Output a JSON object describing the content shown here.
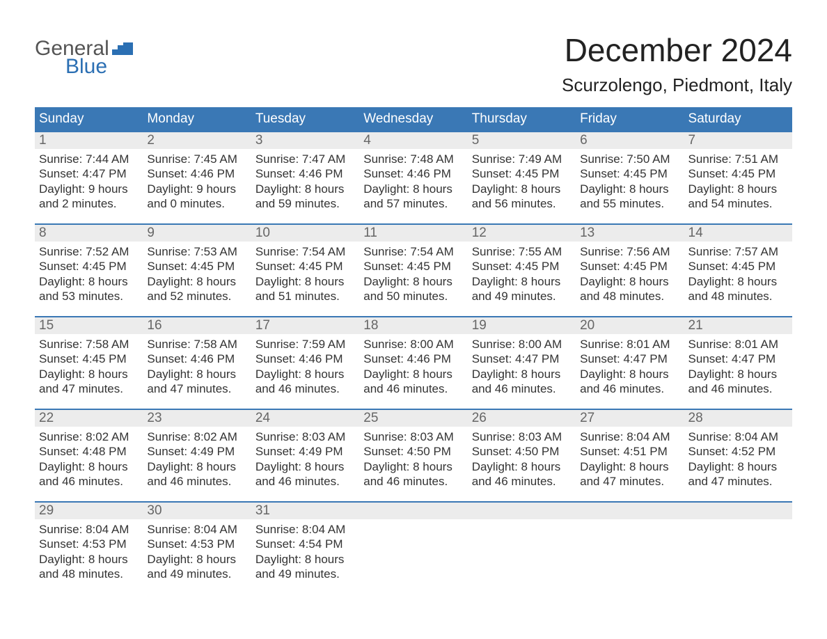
{
  "logo": {
    "word1": "General",
    "word2": "Blue"
  },
  "title": "December 2024",
  "subtitle": "Scurzolengo, Piedmont, Italy",
  "colors": {
    "header_bg": "#3a78b5",
    "header_text": "#ffffff",
    "row_divider": "#3a78b5",
    "daynum_bg": "#ececec",
    "daynum_text": "#666666",
    "body_text": "#333333",
    "logo_gray": "#555555",
    "logo_blue": "#2b6fb3",
    "page_bg": "#ffffff"
  },
  "fontsize": {
    "title": 46,
    "subtitle": 26,
    "weekday": 19,
    "daynum": 19,
    "cell": 17,
    "logo": 30
  },
  "weekdays": [
    "Sunday",
    "Monday",
    "Tuesday",
    "Wednesday",
    "Thursday",
    "Friday",
    "Saturday"
  ],
  "weeks": [
    {
      "days": [
        {
          "num": "1",
          "sunrise": "Sunrise: 7:44 AM",
          "sunset": "Sunset: 4:47 PM",
          "day1": "Daylight: 9 hours",
          "day2": "and 2 minutes."
        },
        {
          "num": "2",
          "sunrise": "Sunrise: 7:45 AM",
          "sunset": "Sunset: 4:46 PM",
          "day1": "Daylight: 9 hours",
          "day2": "and 0 minutes."
        },
        {
          "num": "3",
          "sunrise": "Sunrise: 7:47 AM",
          "sunset": "Sunset: 4:46 PM",
          "day1": "Daylight: 8 hours",
          "day2": "and 59 minutes."
        },
        {
          "num": "4",
          "sunrise": "Sunrise: 7:48 AM",
          "sunset": "Sunset: 4:46 PM",
          "day1": "Daylight: 8 hours",
          "day2": "and 57 minutes."
        },
        {
          "num": "5",
          "sunrise": "Sunrise: 7:49 AM",
          "sunset": "Sunset: 4:45 PM",
          "day1": "Daylight: 8 hours",
          "day2": "and 56 minutes."
        },
        {
          "num": "6",
          "sunrise": "Sunrise: 7:50 AM",
          "sunset": "Sunset: 4:45 PM",
          "day1": "Daylight: 8 hours",
          "day2": "and 55 minutes."
        },
        {
          "num": "7",
          "sunrise": "Sunrise: 7:51 AM",
          "sunset": "Sunset: 4:45 PM",
          "day1": "Daylight: 8 hours",
          "day2": "and 54 minutes."
        }
      ]
    },
    {
      "days": [
        {
          "num": "8",
          "sunrise": "Sunrise: 7:52 AM",
          "sunset": "Sunset: 4:45 PM",
          "day1": "Daylight: 8 hours",
          "day2": "and 53 minutes."
        },
        {
          "num": "9",
          "sunrise": "Sunrise: 7:53 AM",
          "sunset": "Sunset: 4:45 PM",
          "day1": "Daylight: 8 hours",
          "day2": "and 52 minutes."
        },
        {
          "num": "10",
          "sunrise": "Sunrise: 7:54 AM",
          "sunset": "Sunset: 4:45 PM",
          "day1": "Daylight: 8 hours",
          "day2": "and 51 minutes."
        },
        {
          "num": "11",
          "sunrise": "Sunrise: 7:54 AM",
          "sunset": "Sunset: 4:45 PM",
          "day1": "Daylight: 8 hours",
          "day2": "and 50 minutes."
        },
        {
          "num": "12",
          "sunrise": "Sunrise: 7:55 AM",
          "sunset": "Sunset: 4:45 PM",
          "day1": "Daylight: 8 hours",
          "day2": "and 49 minutes."
        },
        {
          "num": "13",
          "sunrise": "Sunrise: 7:56 AM",
          "sunset": "Sunset: 4:45 PM",
          "day1": "Daylight: 8 hours",
          "day2": "and 48 minutes."
        },
        {
          "num": "14",
          "sunrise": "Sunrise: 7:57 AM",
          "sunset": "Sunset: 4:45 PM",
          "day1": "Daylight: 8 hours",
          "day2": "and 48 minutes."
        }
      ]
    },
    {
      "days": [
        {
          "num": "15",
          "sunrise": "Sunrise: 7:58 AM",
          "sunset": "Sunset: 4:45 PM",
          "day1": "Daylight: 8 hours",
          "day2": "and 47 minutes."
        },
        {
          "num": "16",
          "sunrise": "Sunrise: 7:58 AM",
          "sunset": "Sunset: 4:46 PM",
          "day1": "Daylight: 8 hours",
          "day2": "and 47 minutes."
        },
        {
          "num": "17",
          "sunrise": "Sunrise: 7:59 AM",
          "sunset": "Sunset: 4:46 PM",
          "day1": "Daylight: 8 hours",
          "day2": "and 46 minutes."
        },
        {
          "num": "18",
          "sunrise": "Sunrise: 8:00 AM",
          "sunset": "Sunset: 4:46 PM",
          "day1": "Daylight: 8 hours",
          "day2": "and 46 minutes."
        },
        {
          "num": "19",
          "sunrise": "Sunrise: 8:00 AM",
          "sunset": "Sunset: 4:47 PM",
          "day1": "Daylight: 8 hours",
          "day2": "and 46 minutes."
        },
        {
          "num": "20",
          "sunrise": "Sunrise: 8:01 AM",
          "sunset": "Sunset: 4:47 PM",
          "day1": "Daylight: 8 hours",
          "day2": "and 46 minutes."
        },
        {
          "num": "21",
          "sunrise": "Sunrise: 8:01 AM",
          "sunset": "Sunset: 4:47 PM",
          "day1": "Daylight: 8 hours",
          "day2": "and 46 minutes."
        }
      ]
    },
    {
      "days": [
        {
          "num": "22",
          "sunrise": "Sunrise: 8:02 AM",
          "sunset": "Sunset: 4:48 PM",
          "day1": "Daylight: 8 hours",
          "day2": "and 46 minutes."
        },
        {
          "num": "23",
          "sunrise": "Sunrise: 8:02 AM",
          "sunset": "Sunset: 4:49 PM",
          "day1": "Daylight: 8 hours",
          "day2": "and 46 minutes."
        },
        {
          "num": "24",
          "sunrise": "Sunrise: 8:03 AM",
          "sunset": "Sunset: 4:49 PM",
          "day1": "Daylight: 8 hours",
          "day2": "and 46 minutes."
        },
        {
          "num": "25",
          "sunrise": "Sunrise: 8:03 AM",
          "sunset": "Sunset: 4:50 PM",
          "day1": "Daylight: 8 hours",
          "day2": "and 46 minutes."
        },
        {
          "num": "26",
          "sunrise": "Sunrise: 8:03 AM",
          "sunset": "Sunset: 4:50 PM",
          "day1": "Daylight: 8 hours",
          "day2": "and 46 minutes."
        },
        {
          "num": "27",
          "sunrise": "Sunrise: 8:04 AM",
          "sunset": "Sunset: 4:51 PM",
          "day1": "Daylight: 8 hours",
          "day2": "and 47 minutes."
        },
        {
          "num": "28",
          "sunrise": "Sunrise: 8:04 AM",
          "sunset": "Sunset: 4:52 PM",
          "day1": "Daylight: 8 hours",
          "day2": "and 47 minutes."
        }
      ]
    },
    {
      "days": [
        {
          "num": "29",
          "sunrise": "Sunrise: 8:04 AM",
          "sunset": "Sunset: 4:53 PM",
          "day1": "Daylight: 8 hours",
          "day2": "and 48 minutes."
        },
        {
          "num": "30",
          "sunrise": "Sunrise: 8:04 AM",
          "sunset": "Sunset: 4:53 PM",
          "day1": "Daylight: 8 hours",
          "day2": "and 49 minutes."
        },
        {
          "num": "31",
          "sunrise": "Sunrise: 8:04 AM",
          "sunset": "Sunset: 4:54 PM",
          "day1": "Daylight: 8 hours",
          "day2": "and 49 minutes."
        },
        {
          "empty": true
        },
        {
          "empty": true
        },
        {
          "empty": true
        },
        {
          "empty": true
        }
      ]
    }
  ]
}
